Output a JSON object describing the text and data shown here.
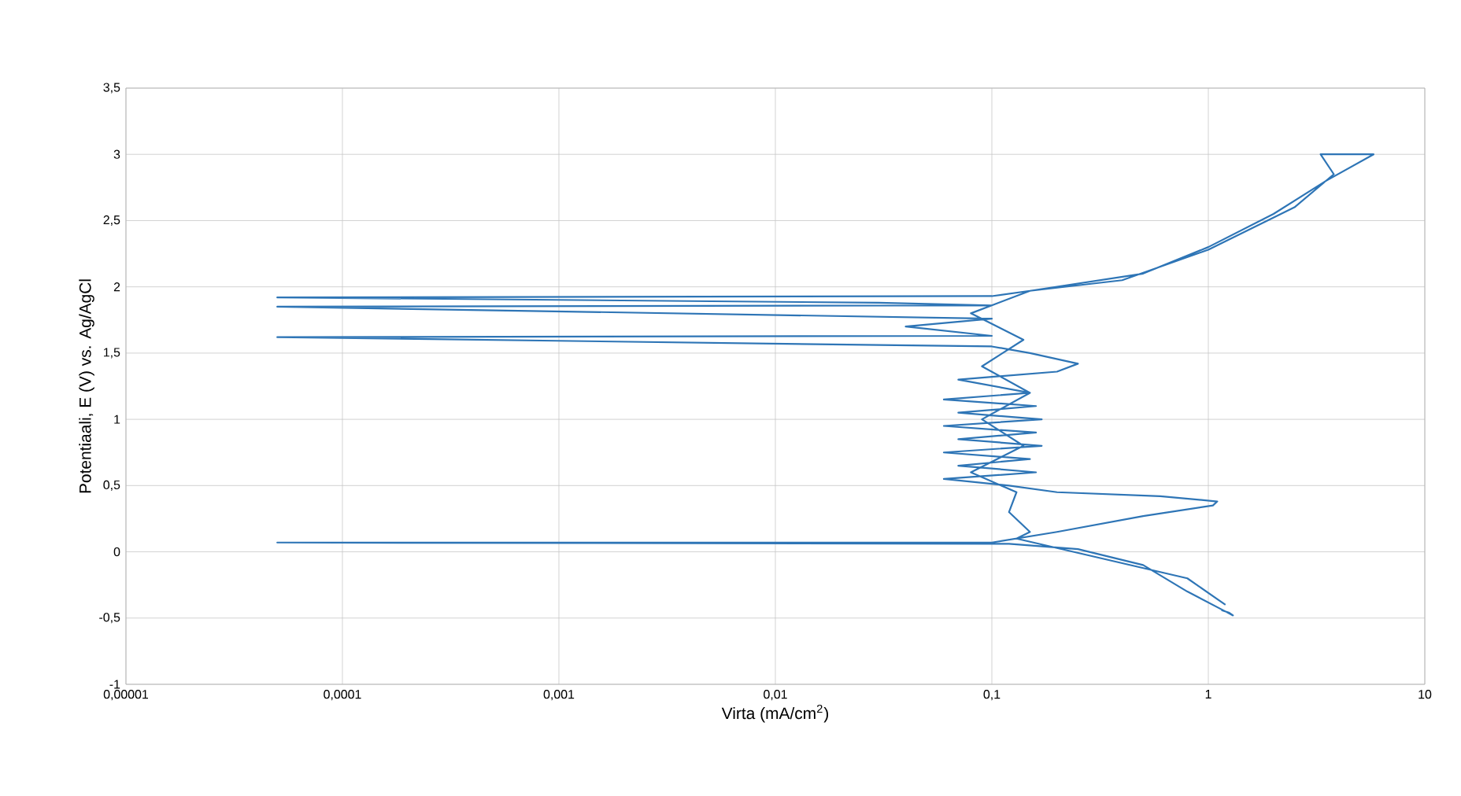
{
  "chart_data": {
    "type": "line",
    "xlabel": "Virta (mA/cm$^{2}$)",
    "ylabel": "Potentiaali, E (V) vs. Ag/AgCl",
    "log": "x",
    "grid": true,
    "marker": "none",
    "line_style": "solid",
    "xlim": [
      1e-05,
      10
    ],
    "ylim": [
      -1,
      3.5
    ],
    "xticks": [
      {
        "value": 1e-05,
        "label": "0,00001"
      },
      {
        "value": 0.0001,
        "label": "0,0001"
      },
      {
        "value": 0.001,
        "label": "0,001"
      },
      {
        "value": 0.01,
        "label": "0,01"
      },
      {
        "value": 0.1,
        "label": "0,1"
      },
      {
        "value": 1,
        "label": "1"
      },
      {
        "value": 10,
        "label": "10"
      }
    ],
    "yticks": [
      {
        "value": -1,
        "label": "-1"
      },
      {
        "value": -0.5,
        "label": "-0,5"
      },
      {
        "value": 0,
        "label": "0"
      },
      {
        "value": 0.5,
        "label": "0,5"
      },
      {
        "value": 1,
        "label": "1"
      },
      {
        "value": 1.5,
        "label": "1,5"
      },
      {
        "value": 2,
        "label": "2"
      },
      {
        "value": 2.5,
        "label": "2,5"
      },
      {
        "value": 3,
        "label": "3"
      },
      {
        "value": 3.5,
        "label": "3,5"
      }
    ],
    "series": [
      {
        "color": "#2e75b6",
        "x": [
          1.15,
          1.25,
          1.3,
          1.2,
          0.8,
          0.5,
          0.25,
          0.12,
          5e-05,
          0.1,
          0.2,
          0.5,
          1.05,
          1.1,
          0.6,
          0.2,
          0.12,
          0.06,
          0.16,
          0.07,
          0.15,
          0.06,
          0.17,
          0.07,
          0.16,
          0.06,
          0.17,
          0.07,
          0.16,
          0.06,
          0.15,
          0.07,
          0.2,
          0.25,
          0.15,
          0.1,
          5e-05,
          0.1,
          0.04,
          0.1,
          5e-05,
          0.1,
          0.03,
          5e-05,
          0.1,
          0.15,
          0.5,
          1,
          2,
          3.5,
          5.8,
          4.3,
          3.3,
          3.8,
          2.5,
          1,
          0.4,
          0.15,
          0.08,
          0.14,
          0.09,
          0.15,
          0.09,
          0.14,
          0.08,
          0.13,
          0.12,
          0.15,
          0.13,
          0.8,
          1.2
        ],
        "values": [
          -0.44,
          -0.46,
          -0.48,
          -0.45,
          -0.3,
          -0.1,
          0.02,
          0.06,
          0.07,
          0.07,
          0.15,
          0.27,
          0.35,
          0.38,
          0.42,
          0.45,
          0.5,
          0.55,
          0.6,
          0.65,
          0.7,
          0.75,
          0.8,
          0.85,
          0.9,
          0.95,
          1.0,
          1.05,
          1.1,
          1.15,
          1.2,
          1.3,
          1.36,
          1.42,
          1.5,
          1.55,
          1.62,
          1.63,
          1.7,
          1.76,
          1.85,
          1.86,
          1.88,
          1.92,
          1.93,
          1.97,
          2.1,
          2.3,
          2.55,
          2.8,
          3.0,
          3.0,
          3.0,
          2.85,
          2.6,
          2.28,
          2.05,
          1.97,
          1.8,
          1.6,
          1.4,
          1.2,
          1.0,
          0.8,
          0.6,
          0.45,
          0.3,
          0.15,
          0.1,
          -0.2,
          -0.4
        ]
      }
    ]
  }
}
